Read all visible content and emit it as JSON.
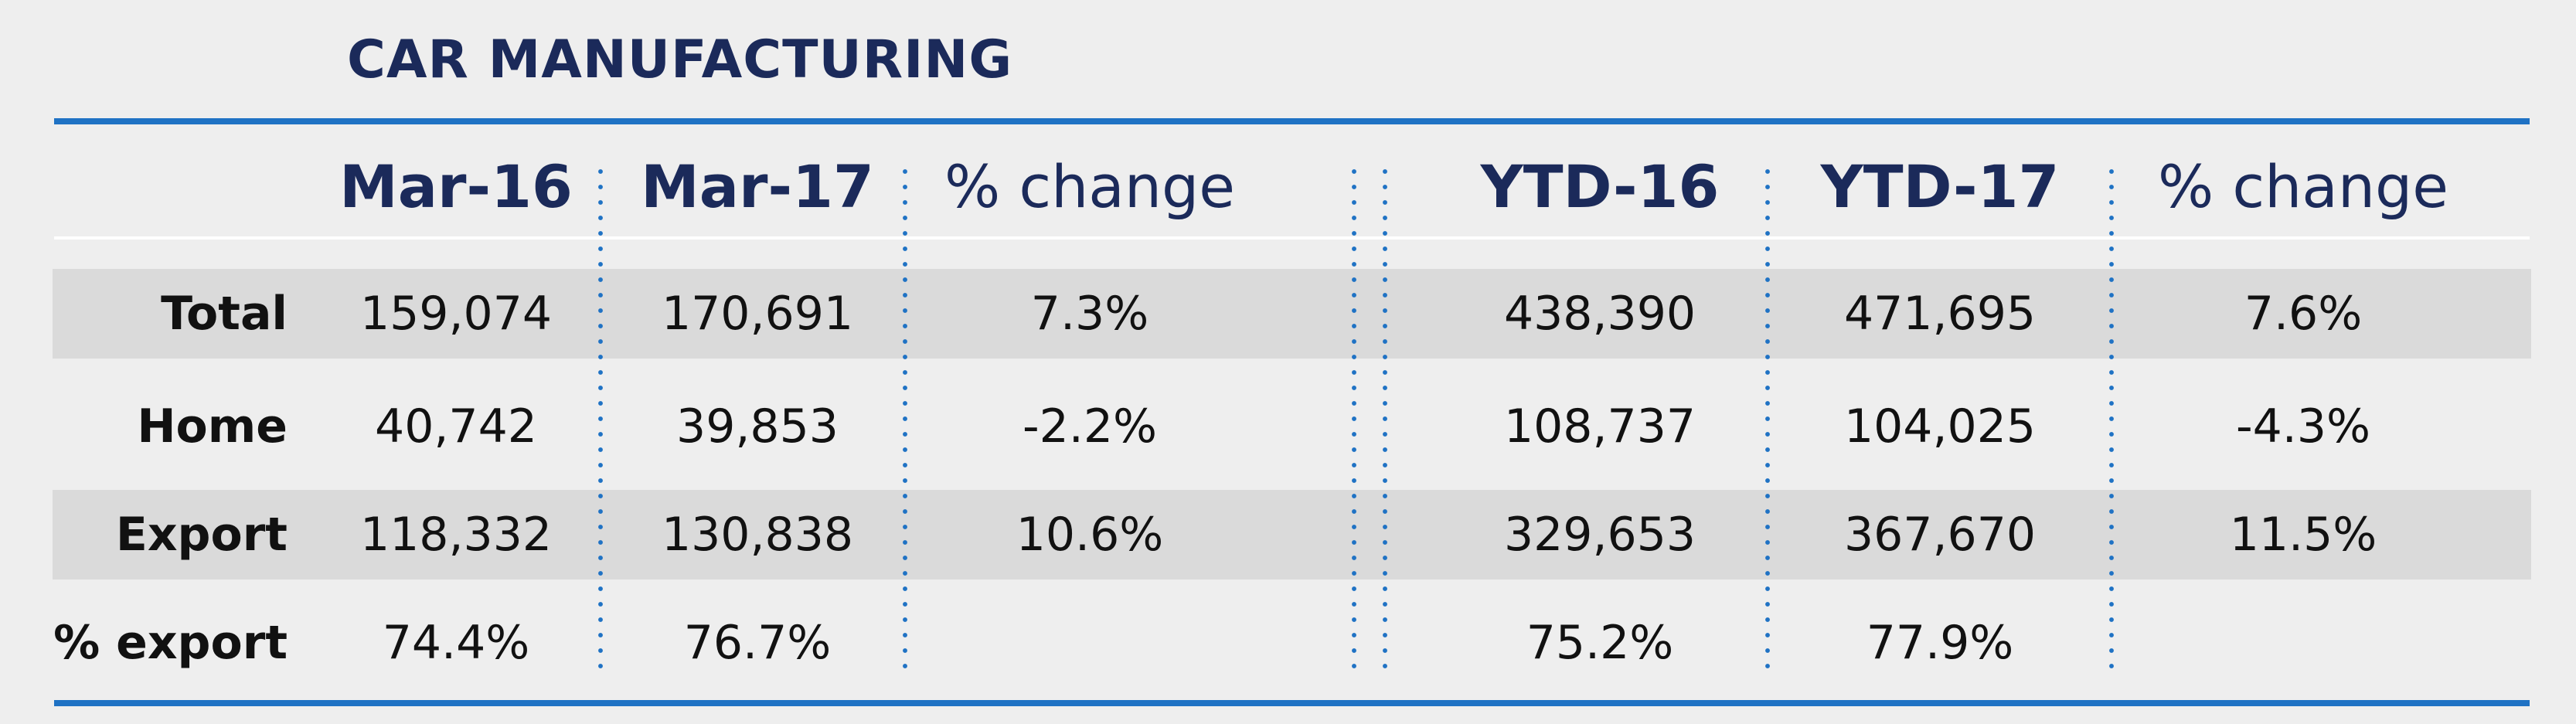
{
  "title": "CAR MANUFACTURING",
  "colors": {
    "accent_rule": "#1f72c4",
    "title_text": "#1b2a5a",
    "band_fill": "#dadada",
    "background": "#eeeeee"
  },
  "headers": [
    "Mar-16",
    "Mar-17",
    "% change",
    "YTD-16",
    "YTD-17",
    "% change"
  ],
  "rows": [
    {
      "label": "Total",
      "values": [
        "159,074",
        "170,691",
        "7.3%",
        "438,390",
        "471,695",
        "7.6%"
      ]
    },
    {
      "label": "Home",
      "values": [
        "40,742",
        "39,853",
        "-2.2%",
        "108,737",
        "104,025",
        "-4.3%"
      ]
    },
    {
      "label": "Export",
      "values": [
        "118,332",
        "130,838",
        "10.6%",
        "329,653",
        "367,670",
        "11.5%"
      ]
    },
    {
      "label": "% export",
      "values": [
        "74.4%",
        "76.7%",
        "",
        "75.2%",
        "77.9%",
        ""
      ]
    }
  ],
  "chart_data": {
    "type": "table",
    "title": "CAR MANUFACTURING",
    "columns": [
      "Mar-16",
      "Mar-17",
      "% change",
      "YTD-16",
      "YTD-17",
      "% change"
    ],
    "row_labels": [
      "Total",
      "Home",
      "Export",
      "% export"
    ],
    "cells": [
      [
        "159,074",
        "170,691",
        "7.3%",
        "438,390",
        "471,695",
        "7.6%"
      ],
      [
        "40,742",
        "39,853",
        "-2.2%",
        "108,737",
        "104,025",
        "-4.3%"
      ],
      [
        "118,332",
        "130,838",
        "10.6%",
        "329,653",
        "367,670",
        "11.5%"
      ],
      [
        "74.4%",
        "76.7%",
        "",
        "75.2%",
        "77.9%",
        ""
      ]
    ]
  }
}
